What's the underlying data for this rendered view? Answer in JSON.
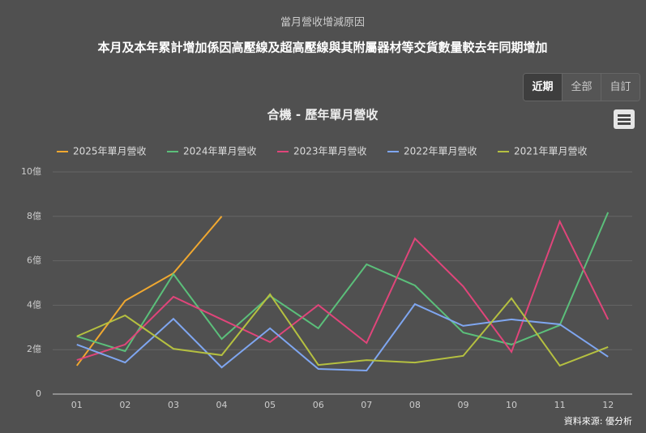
{
  "header": {
    "title": "當月營收增減原因",
    "subtitle": "本月及本年累計增加係因高壓線及超高壓線與其附屬器材等交貨數量較去年同期增加"
  },
  "buttons": [
    "近期",
    "全部",
    "自訂"
  ],
  "chart_data": {
    "type": "line",
    "title": "合機 - 歷年單月營收",
    "source": "資料來源: 優分析",
    "categories": [
      "01",
      "02",
      "03",
      "04",
      "05",
      "06",
      "07",
      "08",
      "09",
      "10",
      "11",
      "12"
    ],
    "series": [
      {
        "name": "2025年單月營收",
        "color": "#f0a830",
        "values": [
          1.28,
          4.2,
          5.44,
          8.0,
          null,
          null,
          null,
          null,
          null,
          null,
          null,
          null
        ]
      },
      {
        "name": "2024年單月營收",
        "color": "#5bbf7a",
        "values": [
          2.6,
          1.93,
          5.4,
          2.48,
          4.42,
          2.96,
          5.84,
          4.89,
          2.77,
          2.23,
          3.1,
          8.18
        ]
      },
      {
        "name": "2023年單月營收",
        "color": "#e0457a",
        "values": [
          1.53,
          2.23,
          4.38,
          3.36,
          2.34,
          4.01,
          2.3,
          7.0,
          4.85,
          1.9,
          7.77,
          3.36
        ]
      },
      {
        "name": "2022年單月營收",
        "color": "#7fa6f0",
        "values": [
          2.23,
          1.42,
          3.39,
          1.2,
          2.96,
          1.13,
          1.06,
          4.05,
          3.07,
          3.36,
          3.14,
          1.68
        ]
      },
      {
        "name": "2021年單月營收",
        "color": "#b5c040",
        "values": [
          2.6,
          3.54,
          2.04,
          1.75,
          4.49,
          1.31,
          1.53,
          1.42,
          1.72,
          4.31,
          1.28,
          2.12
        ]
      }
    ],
    "ylim": [
      0,
      10
    ],
    "yticks": [
      0,
      {
        "value": 2,
        "label": "2億"
      },
      {
        "value": 4,
        "label": "4億"
      },
      {
        "value": 6,
        "label": "6億"
      },
      {
        "value": 8,
        "label": "8億"
      },
      {
        "value": 10,
        "label": "10億"
      }
    ],
    "grid": true,
    "legend": "top"
  }
}
